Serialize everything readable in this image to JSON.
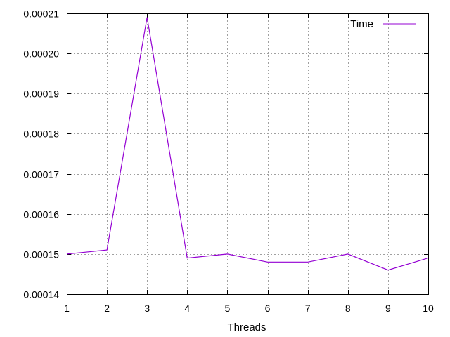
{
  "chart_data": {
    "type": "line",
    "title": "",
    "xlabel": "Threads",
    "ylabel": "",
    "x": [
      1,
      2,
      3,
      4,
      5,
      6,
      7,
      8,
      9,
      10
    ],
    "series": [
      {
        "name": "Time",
        "color": "#9400d3",
        "values": [
          0.00015,
          0.000151,
          0.000209,
          0.000149,
          0.00015,
          0.000148,
          0.000148,
          0.00015,
          0.000146,
          0.000149
        ]
      }
    ],
    "xlim": [
      1,
      10
    ],
    "ylim": [
      0.00014,
      0.00021
    ],
    "xticks": [
      "1",
      "2",
      "3",
      "4",
      "5",
      "6",
      "7",
      "8",
      "9",
      "10"
    ],
    "yticks": [
      "0.00014",
      "0.00015",
      "0.00016",
      "0.00017",
      "0.00018",
      "0.00019",
      "0.00020",
      "0.00021"
    ],
    "grid": true,
    "legend_position": "top-right"
  }
}
